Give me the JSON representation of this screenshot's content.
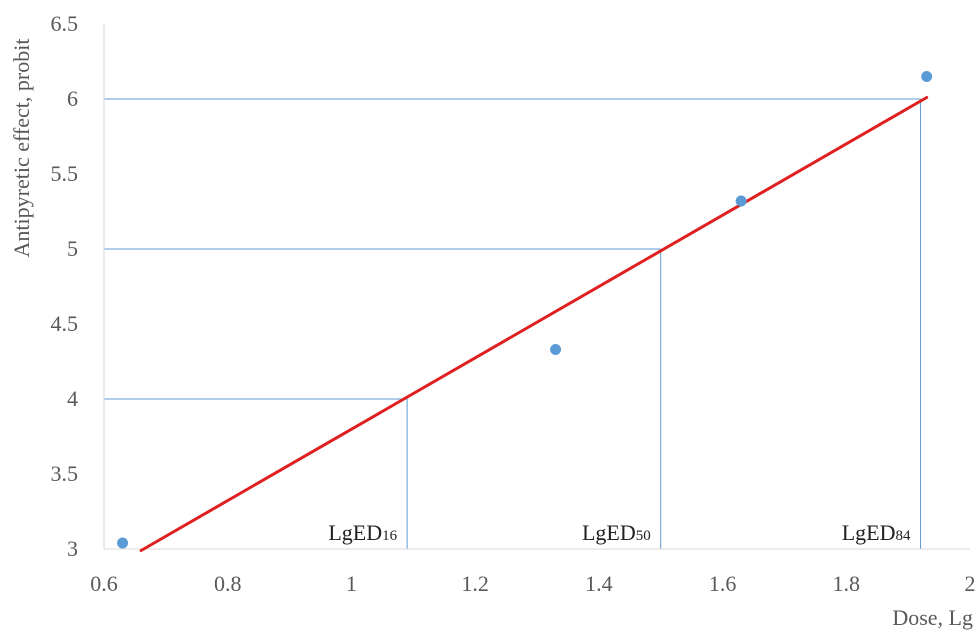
{
  "chart_data": {
    "type": "scatter",
    "xlabel": "Dose, Lg",
    "ylabel": "Antipyretic effect, probit",
    "xlim": [
      0.6,
      2
    ],
    "ylim": [
      3,
      6.5
    ],
    "xticks": [
      "0.6",
      "0.8",
      "1",
      "1.2",
      "1.4",
      "1.6",
      "1.8",
      "2"
    ],
    "yticks": [
      "3",
      "3.5",
      "4",
      "4.5",
      "5",
      "5.5",
      "6",
      "6.5"
    ],
    "grid": false,
    "series": [
      {
        "kind": "points",
        "color": "#5b9bd5",
        "points": [
          {
            "x": 0.63,
            "y": 3.04
          },
          {
            "x": 1.33,
            "y": 4.33
          },
          {
            "x": 1.63,
            "y": 5.32
          },
          {
            "x": 1.93,
            "y": 6.15
          }
        ]
      },
      {
        "kind": "trendline",
        "color": "#e02020",
        "points": [
          {
            "x": 0.66,
            "y": 2.99
          },
          {
            "x": 1.93,
            "y": 6.01
          }
        ]
      }
    ],
    "reference_lines": [
      {
        "id": "ed16",
        "x": 1.09,
        "y": 4,
        "color": "#5b9bd5"
      },
      {
        "id": "ed50",
        "x": 1.5,
        "y": 5,
        "color": "#5b9bd5"
      },
      {
        "id": "ed84",
        "x": 1.92,
        "y": 6,
        "color": "#5b9bd5"
      }
    ],
    "annotations": [
      {
        "id": "ed16",
        "main": "LgED",
        "sub": "16",
        "x": 1.09
      },
      {
        "id": "ed50",
        "main": "LgED",
        "sub": "50",
        "x": 1.5
      },
      {
        "id": "ed84",
        "main": "LgED",
        "sub": "84",
        "x": 1.92
      }
    ]
  }
}
